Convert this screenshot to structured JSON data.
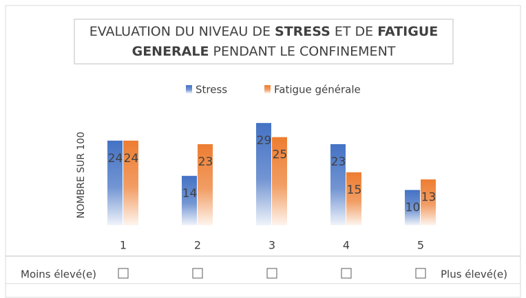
{
  "chart_data": {
    "type": "bar",
    "title": [
      {
        "text": "EVALUATION DU NIVEAU DE ",
        "bold": false
      },
      {
        "text": "STRESS",
        "bold": true
      },
      {
        "text": " ET DE ",
        "bold": false
      },
      {
        "text": "FATIGUE",
        "bold": true
      },
      {
        "text": "GENERALE",
        "bold": true
      },
      {
        "text": " PENDANT LE CONFINEMENT",
        "bold": false
      }
    ],
    "y_label": "NOMBRE SUR 100",
    "categories": [
      "1",
      "2",
      "3",
      "4",
      "5"
    ],
    "series": [
      {
        "name": "Stress",
        "color": "#4472c4",
        "values": [
          24,
          14,
          29,
          23,
          10
        ]
      },
      {
        "name": "Fatigue générale",
        "color": "#ed7d31",
        "values": [
          24,
          23,
          25,
          15,
          13
        ]
      }
    ],
    "ylim": [
      0,
      30
    ],
    "annotations": [
      "Moins élevé(e)",
      "Plus élevé(e)"
    ]
  }
}
